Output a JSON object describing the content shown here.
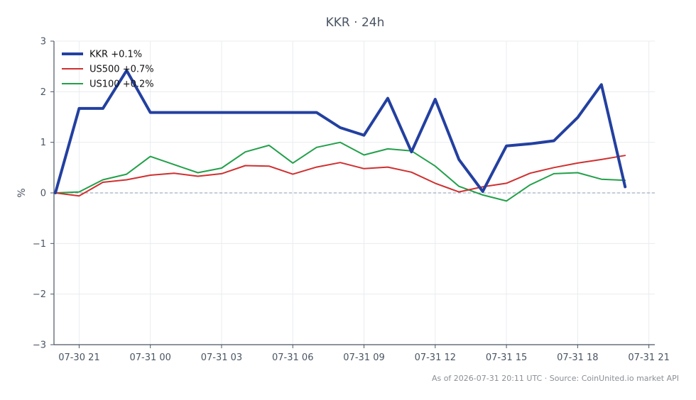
{
  "chart_data": {
    "type": "line",
    "title": "KKR · 24h",
    "xlabel": "",
    "ylabel": "%",
    "ylim": [
      -3,
      3
    ],
    "yticks": [
      3,
      2,
      1,
      0,
      -1,
      -2,
      -3
    ],
    "ytick_labels": [
      "3",
      "2",
      "1",
      "0",
      "−1",
      "−2",
      "−3"
    ],
    "xlim": [
      "2026-07-30 20:00",
      "2026-07-31 21:15"
    ],
    "xticks": [
      "2026-07-30 21:00",
      "2026-07-31 00:00",
      "2026-07-31 03:00",
      "2026-07-31 06:00",
      "2026-07-31 09:00",
      "2026-07-31 12:00",
      "2026-07-31 15:00",
      "2026-07-31 18:00",
      "2026-07-31 21:00"
    ],
    "xtick_labels": [
      "07-30 21",
      "07-31 00",
      "07-31 03",
      "07-31 06",
      "07-31 09",
      "07-31 12",
      "07-31 15",
      "07-31 18",
      "07-31 21"
    ],
    "x": [
      "2026-07-30 20:00",
      "2026-07-30 21:00",
      "2026-07-30 22:00",
      "2026-07-30 23:00",
      "2026-07-31 00:00",
      "2026-07-31 01:00",
      "2026-07-31 02:00",
      "2026-07-31 03:00",
      "2026-07-31 04:00",
      "2026-07-31 05:00",
      "2026-07-31 06:00",
      "2026-07-31 07:00",
      "2026-07-31 08:00",
      "2026-07-31 09:00",
      "2026-07-31 10:00",
      "2026-07-31 11:00",
      "2026-07-31 12:00",
      "2026-07-31 13:00",
      "2026-07-31 14:00",
      "2026-07-31 15:00",
      "2026-07-31 16:00",
      "2026-07-31 17:00",
      "2026-07-31 18:00",
      "2026-07-31 19:00",
      "2026-07-31 20:00"
    ],
    "series": [
      {
        "name": "KKR +0.1%",
        "color": "#2340a0",
        "width": 4,
        "values": [
          0,
          1.67,
          1.67,
          2.42,
          1.59,
          1.59,
          1.59,
          1.59,
          1.59,
          1.59,
          1.59,
          1.59,
          1.29,
          1.14,
          1.87,
          0.81,
          1.85,
          0.66,
          0.03,
          0.93,
          0.97,
          1.03,
          1.49,
          2.14,
          0.12
        ]
      },
      {
        "name": "US500 +0.7%",
        "color": "#d03030",
        "width": 2,
        "values": [
          0,
          -0.06,
          0.21,
          0.26,
          0.35,
          0.39,
          0.33,
          0.38,
          0.54,
          0.53,
          0.37,
          0.51,
          0.6,
          0.48,
          0.51,
          0.41,
          0.19,
          0.02,
          0.12,
          0.19,
          0.39,
          0.5,
          0.59,
          0.66,
          0.74
        ]
      },
      {
        "name": "US100 +0.2%",
        "color": "#22a04a",
        "width": 2,
        "values": [
          0,
          0.02,
          0.26,
          0.37,
          0.72,
          0.56,
          0.4,
          0.49,
          0.81,
          0.94,
          0.59,
          0.9,
          1.0,
          0.75,
          0.87,
          0.83,
          0.53,
          0.13,
          -0.04,
          -0.16,
          0.16,
          0.38,
          0.4,
          0.27,
          0.25
        ]
      }
    ],
    "baseline": 0,
    "grid": true,
    "legend_position": "top-left"
  },
  "footer": {
    "text": "As of 2026-07-31 20:11 UTC · Source: CoinUnited.io market API"
  }
}
